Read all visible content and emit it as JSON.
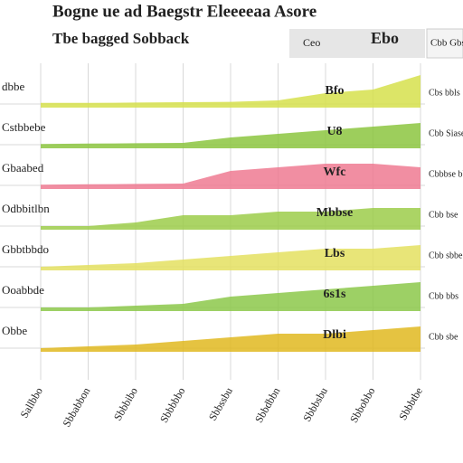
{
  "chart_data": {
    "type": "ridgeline",
    "title": "Bogne ue ad Baegstr Eleeeeaa Asore",
    "subtitle": "Tbe bagged Sobback",
    "annotations": [
      "Ebo",
      "Cbb Gbse",
      "Ceo"
    ],
    "categories": [
      "Sallbbo",
      "Sbbabbon",
      "Sbbbibo",
      "Sbbbbbo",
      "Sbbssbu",
      "Sbbdbbn",
      "Sbbbsbu",
      "Sbbobbo",
      "Sbbbtbe"
    ],
    "ylim": [
      0,
      10
    ],
    "grid": true,
    "series": [
      {
        "name": "dbbe",
        "right_label": "Cbs bbls",
        "label": "Bfo",
        "color": "#d6e04c",
        "values": [
          0.3,
          0.3,
          0.4,
          0.5,
          0.6,
          1,
          3,
          4,
          8
        ]
      },
      {
        "name": "Cstbbebe",
        "right_label": "Cbb Siase",
        "label": "U8",
        "color": "#8cc63f",
        "values": [
          0.2,
          0.3,
          0.4,
          0.5,
          2,
          3,
          4,
          5,
          6
        ]
      },
      {
        "name": "Gbaabed",
        "right_label": "Cbbbse bbe",
        "label": "Wfc",
        "color": "#ee7a92",
        "values": [
          0.2,
          0.3,
          0.4,
          0.5,
          4,
          5,
          6,
          6,
          5
        ]
      },
      {
        "name": "Odbbitlbn",
        "right_label": "Cbb bse",
        "label": "Mbbse",
        "color": "#9ccc4a",
        "values": [
          0,
          0,
          1,
          3,
          3,
          4,
          4,
          5,
          5
        ]
      },
      {
        "name": "Gbbtbbdo",
        "right_label": "Cbb sbbe",
        "label": "Lbs",
        "color": "#e4e060",
        "values": [
          0,
          0.5,
          1,
          2,
          3,
          4,
          5,
          5,
          6
        ]
      },
      {
        "name": "Ooabbde",
        "right_label": "Cbb bbs",
        "label": "6s1s",
        "color": "#8cc84a",
        "values": [
          0,
          0,
          0.5,
          1,
          3,
          4,
          5,
          6,
          7
        ]
      },
      {
        "name": "Obbe",
        "right_label": "Cbb sbe",
        "label": "Dlbi",
        "color": "#e0b820",
        "values": [
          0,
          0.5,
          1,
          2,
          3,
          4,
          4,
          5,
          6
        ]
      }
    ]
  }
}
